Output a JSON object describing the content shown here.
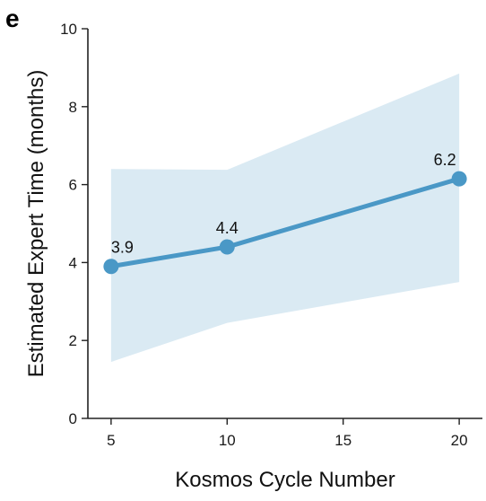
{
  "panel_label": "e",
  "chart_data": {
    "type": "line",
    "xlabel": "Kosmos Cycle Number",
    "ylabel": "Estimated Expert Time (months)",
    "x": [
      5,
      10,
      20
    ],
    "series": [
      {
        "values": [
          3.9,
          4.4,
          6.15
        ],
        "lower": [
          1.45,
          2.45,
          3.5
        ],
        "upper": [
          6.4,
          6.38,
          8.85
        ],
        "data_labels": [
          "3.9",
          "4.4",
          "6.2"
        ],
        "color": "#4a98c6",
        "band_color": "#daeaf3"
      }
    ],
    "xlim": [
      4,
      21
    ],
    "ylim": [
      0,
      10
    ],
    "xticks": [
      5,
      10,
      15,
      20
    ],
    "yticks": [
      0,
      2,
      4,
      6,
      8,
      10
    ],
    "xtick_labels": [
      "5",
      "10",
      "15",
      "20"
    ],
    "ytick_labels": [
      "0",
      "2",
      "4",
      "6",
      "8",
      "10"
    ],
    "grid": false,
    "legend": "none"
  }
}
